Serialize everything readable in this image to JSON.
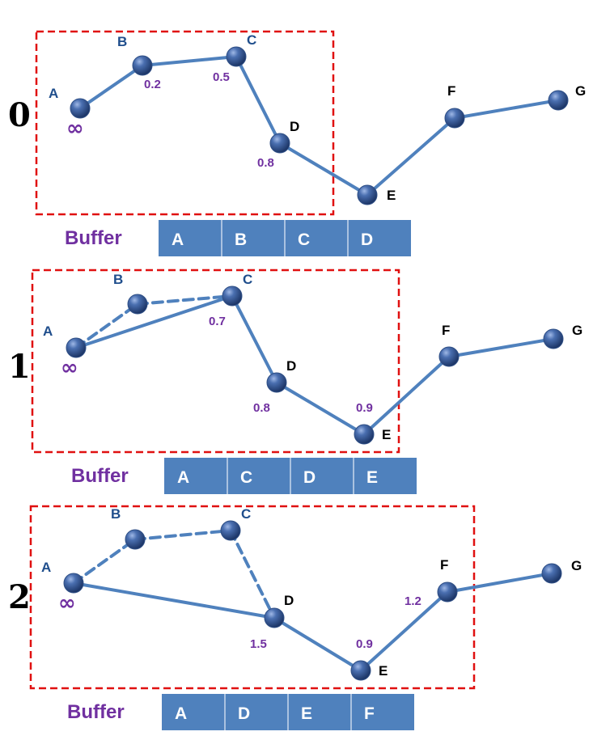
{
  "colors": {
    "line": "#4f81bd",
    "node": "#2f4f86",
    "window_border": "#e01010",
    "weight_text": "#7030a0",
    "buffer_fill": "#4f81bd",
    "buffer_divider": "#c9d7ec",
    "buffer_title": "#7030a0",
    "label_blue": "#1f4e8c",
    "label_black": "#000000"
  },
  "panels": [
    {
      "step": "0",
      "buffer_label": "Buffer",
      "buffer": [
        "A",
        "B",
        "C",
        "D"
      ],
      "nodes": [
        {
          "id": "A",
          "label_color": "blue"
        },
        {
          "id": "B",
          "label_color": "blue"
        },
        {
          "id": "C",
          "label_color": "blue"
        },
        {
          "id": "D",
          "label_color": "black"
        },
        {
          "id": "E",
          "label_color": "black"
        },
        {
          "id": "F",
          "label_color": "black"
        },
        {
          "id": "G",
          "label_color": "black"
        }
      ],
      "weights": {
        "A": "∞",
        "B": "0.2",
        "C": "0.5",
        "D": "0.8"
      },
      "edges": [
        {
          "from": "A",
          "to": "B",
          "style": "solid"
        },
        {
          "from": "B",
          "to": "C",
          "style": "solid"
        },
        {
          "from": "C",
          "to": "D",
          "style": "solid"
        },
        {
          "from": "D",
          "to": "E",
          "style": "solid"
        },
        {
          "from": "E",
          "to": "F",
          "style": "solid"
        },
        {
          "from": "F",
          "to": "G",
          "style": "solid"
        }
      ]
    },
    {
      "step": "1",
      "buffer_label": "Buffer",
      "buffer": [
        "A",
        "C",
        "D",
        "E"
      ],
      "nodes": [
        {
          "id": "A",
          "label_color": "blue"
        },
        {
          "id": "B",
          "label_color": "blue"
        },
        {
          "id": "C",
          "label_color": "blue"
        },
        {
          "id": "D",
          "label_color": "black"
        },
        {
          "id": "E",
          "label_color": "black"
        },
        {
          "id": "F",
          "label_color": "black"
        },
        {
          "id": "G",
          "label_color": "black"
        }
      ],
      "weights": {
        "A": "∞",
        "C": "0.7",
        "D": "0.8",
        "E": "0.9"
      },
      "edges": [
        {
          "from": "A",
          "to": "B",
          "style": "dashed"
        },
        {
          "from": "B",
          "to": "C",
          "style": "dashed"
        },
        {
          "from": "A",
          "to": "C",
          "style": "solid"
        },
        {
          "from": "C",
          "to": "D",
          "style": "solid"
        },
        {
          "from": "D",
          "to": "E",
          "style": "solid"
        },
        {
          "from": "E",
          "to": "F",
          "style": "solid"
        },
        {
          "from": "F",
          "to": "G",
          "style": "solid"
        }
      ]
    },
    {
      "step": "2",
      "buffer_label": "Buffer",
      "buffer": [
        "A",
        "D",
        "E",
        "F"
      ],
      "nodes": [
        {
          "id": "A",
          "label_color": "blue"
        },
        {
          "id": "B",
          "label_color": "blue"
        },
        {
          "id": "C",
          "label_color": "blue"
        },
        {
          "id": "D",
          "label_color": "black"
        },
        {
          "id": "E",
          "label_color": "black"
        },
        {
          "id": "F",
          "label_color": "black"
        },
        {
          "id": "G",
          "label_color": "black"
        }
      ],
      "weights": {
        "A": "∞",
        "D": "1.5",
        "E": "0.9",
        "F": "1.2"
      },
      "edges": [
        {
          "from": "A",
          "to": "B",
          "style": "dashed"
        },
        {
          "from": "B",
          "to": "C",
          "style": "dashed"
        },
        {
          "from": "C",
          "to": "D",
          "style": "dashed"
        },
        {
          "from": "A",
          "to": "D",
          "style": "solid"
        },
        {
          "from": "D",
          "to": "E",
          "style": "solid"
        },
        {
          "from": "E",
          "to": "F",
          "style": "solid"
        },
        {
          "from": "F",
          "to": "G",
          "style": "solid"
        }
      ]
    }
  ]
}
